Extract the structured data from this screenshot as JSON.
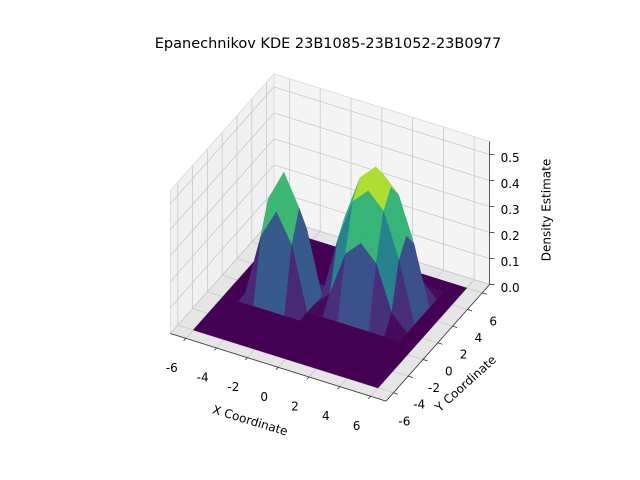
{
  "chart_data": {
    "type": "surface",
    "title": "Epanechnikov KDE 23B1085-23B1052-23B0977",
    "xlabel": "X Coordinate",
    "ylabel": "Y Coordinate",
    "zlabel": "Density Estimate",
    "colormap": "viridis",
    "x": [
      -6,
      -5,
      -4,
      -3,
      -2,
      -1,
      0,
      1,
      2,
      3,
      4,
      5,
      6
    ],
    "y": [
      -6,
      -5,
      -4,
      -3,
      -2,
      -1,
      0,
      1,
      2,
      3,
      4,
      5,
      6
    ],
    "z": [
      [
        0,
        0,
        0,
        0,
        0,
        0,
        0,
        0,
        0,
        0,
        0,
        0,
        0
      ],
      [
        0,
        0,
        0,
        0,
        0,
        0,
        0,
        0,
        0,
        0,
        0,
        0,
        0
      ],
      [
        0,
        0,
        0,
        0,
        0,
        0,
        0,
        0,
        0,
        0,
        0,
        0,
        0
      ],
      [
        0,
        0,
        0,
        0,
        0,
        0,
        0,
        0,
        0,
        0,
        0,
        0,
        0
      ],
      [
        0,
        0,
        0,
        0,
        0,
        0,
        0,
        0,
        0,
        0,
        0,
        0,
        0
      ],
      [
        0,
        0,
        0.24,
        0.35,
        0.24,
        0,
        0,
        0,
        0,
        0,
        0,
        0,
        0
      ],
      [
        0,
        0,
        0.35,
        0.47,
        0.35,
        0,
        0.06,
        0.23,
        0.29,
        0.23,
        0.06,
        0,
        0
      ],
      [
        0,
        0,
        0.24,
        0.35,
        0.24,
        0,
        0.23,
        0.4,
        0.46,
        0.4,
        0.23,
        0,
        0
      ],
      [
        0,
        0,
        0,
        0,
        0,
        0,
        0.29,
        0.46,
        0.52,
        0.46,
        0.29,
        0,
        0
      ],
      [
        0,
        0,
        0,
        0,
        0,
        0,
        0.23,
        0.4,
        0.46,
        0.4,
        0.23,
        0,
        0
      ],
      [
        0,
        0,
        0,
        0,
        0,
        0,
        0.06,
        0.23,
        0.29,
        0.23,
        0.06,
        0,
        0
      ],
      [
        0,
        0,
        0,
        0,
        0,
        0,
        0,
        0,
        0,
        0,
        0,
        0,
        0
      ],
      [
        0,
        0,
        0,
        0,
        0,
        0,
        0,
        0,
        0,
        0,
        0,
        0,
        0
      ]
    ],
    "xlim": [
      -7,
      7
    ],
    "ylim": [
      -7,
      7
    ],
    "zlim": [
      0,
      0.55
    ],
    "xticks": [
      -6,
      -4,
      -2,
      0,
      2,
      4,
      6
    ],
    "yticks": [
      -6,
      -4,
      -2,
      0,
      2,
      4,
      6
    ],
    "zticks": [
      {
        "value": 0,
        "label": "0.0"
      },
      0.1,
      0.2,
      0.3,
      0.4,
      0.5
    ],
    "grid": true
  }
}
